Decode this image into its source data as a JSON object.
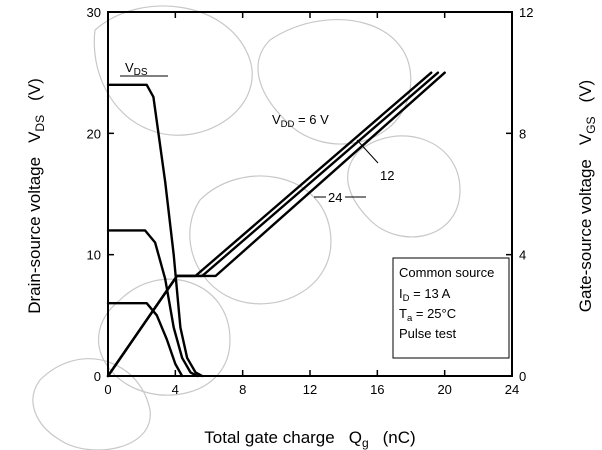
{
  "chart_data": {
    "type": "line",
    "title": "",
    "xlabel": {
      "text": "Total gate charge",
      "symbol": "Q",
      "subscript": "g",
      "unit": "(nC)"
    },
    "ylabel_left": {
      "text": "Drain-source voltage",
      "symbol": "V",
      "subscript": "DS",
      "unit": "(V)"
    },
    "ylabel_right": {
      "text": "Gate-source voltage",
      "symbol": "V",
      "subscript": "GS",
      "unit": "(V)"
    },
    "xlim": [
      0,
      24
    ],
    "ylim_left": [
      0,
      30
    ],
    "ylim_right": [
      0,
      12
    ],
    "x_ticks": [
      "0",
      "4",
      "8",
      "12",
      "16",
      "20",
      "24"
    ],
    "y_left_ticks": [
      "0",
      "10",
      "20",
      "30"
    ],
    "y_right_ticks": [
      "0",
      "4",
      "8",
      "12"
    ],
    "grid": false,
    "series": [
      {
        "name": "V_DS",
        "axis": "left",
        "param": "V_DD = 24 V",
        "points": [
          [
            0,
            24
          ],
          [
            2.3,
            24
          ],
          [
            2.7,
            23
          ],
          [
            3.4,
            16
          ],
          [
            3.9,
            10
          ],
          [
            4.3,
            4
          ],
          [
            4.7,
            1.5
          ],
          [
            5.2,
            0.3
          ],
          [
            5.6,
            0
          ]
        ]
      },
      {
        "name": "V_DS",
        "axis": "left",
        "param": "V_DD = 12 V",
        "points": [
          [
            0,
            12
          ],
          [
            2.2,
            12
          ],
          [
            2.8,
            11
          ],
          [
            3.4,
            8
          ],
          [
            3.9,
            4
          ],
          [
            4.4,
            1.5
          ],
          [
            4.9,
            0.3
          ],
          [
            5.3,
            0
          ]
        ]
      },
      {
        "name": "V_DS",
        "axis": "left",
        "param": "V_DD = 6 V",
        "points": [
          [
            0,
            6
          ],
          [
            2.3,
            6
          ],
          [
            2.9,
            5
          ],
          [
            3.5,
            3
          ],
          [
            4.0,
            1
          ],
          [
            4.4,
            0
          ]
        ]
      },
      {
        "name": "V_GS",
        "axis": "right",
        "param": "V_DD = 24 V",
        "points": [
          [
            0,
            0
          ],
          [
            4.1,
            3.3
          ],
          [
            6.4,
            3.3
          ],
          [
            20.0,
            10.0
          ]
        ]
      },
      {
        "name": "V_GS",
        "axis": "right",
        "param": "V_DD = 12 V",
        "points": [
          [
            0,
            0
          ],
          [
            4.1,
            3.3
          ],
          [
            5.6,
            3.3
          ],
          [
            19.6,
            10.0
          ]
        ]
      },
      {
        "name": "V_GS",
        "axis": "right",
        "param": "V_DD = 6 V",
        "points": [
          [
            0,
            0
          ],
          [
            4.1,
            3.3
          ],
          [
            5.2,
            3.3
          ],
          [
            19.2,
            10.0
          ]
        ]
      }
    ],
    "annotations": {
      "vds": {
        "symbol": "V",
        "subscript": "DS"
      },
      "vdd": {
        "symbol": "V",
        "subscript": "DD",
        "rest": " = 6 V"
      },
      "v12": "12",
      "v24": "24"
    },
    "conditions": {
      "line1": "Common source",
      "id_symbol": "I",
      "id_sub": "D",
      "id_rest": " = 13 A",
      "ta_symbol": "T",
      "ta_sub": "a",
      "ta_rest": " = 25°C",
      "line4": "Pulse test"
    }
  }
}
